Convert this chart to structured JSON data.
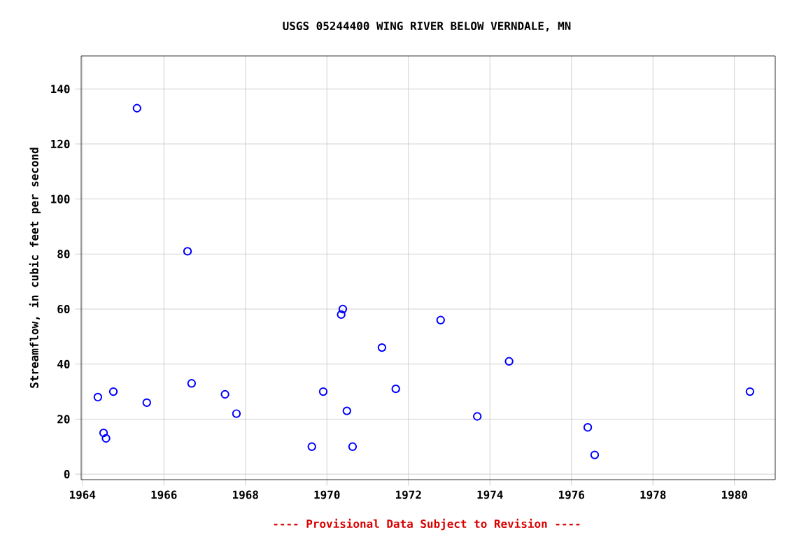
{
  "chart_data": {
    "type": "scatter",
    "title": "USGS 05244400 WING RIVER BELOW VERNDALE, MN",
    "xlabel": null,
    "ylabel": "Streamflow, in cubic feet per second",
    "annotations": [
      "---- Provisional Data Subject to Revision ----"
    ],
    "series": [
      {
        "color": "#0000ff",
        "x": [
          1964.38,
          1964.52,
          1964.58,
          1964.76,
          1965.34,
          1965.58,
          1966.58,
          1966.68,
          1967.5,
          1967.78,
          1969.63,
          1969.91,
          1970.35,
          1970.39,
          1970.49,
          1970.63,
          1971.35,
          1971.69,
          1972.79,
          1973.69,
          1974.47,
          1976.4,
          1976.57,
          1980.38
        ],
        "values": [
          28,
          15,
          13,
          30,
          133,
          26,
          81,
          33,
          29,
          22,
          10,
          30,
          58,
          60,
          23,
          10,
          46,
          31,
          56,
          21,
          41,
          17,
          7,
          30
        ]
      }
    ],
    "xlim": [
      1963.97,
      1981.0
    ],
    "ylim": [
      -2,
      152
    ],
    "xticks": [
      1964,
      1966,
      1968,
      1970,
      1972,
      1974,
      1976,
      1978,
      1980
    ],
    "yticks": [
      0,
      20,
      40,
      60,
      80,
      100,
      120,
      140
    ],
    "grid": true,
    "marker": "circle"
  }
}
